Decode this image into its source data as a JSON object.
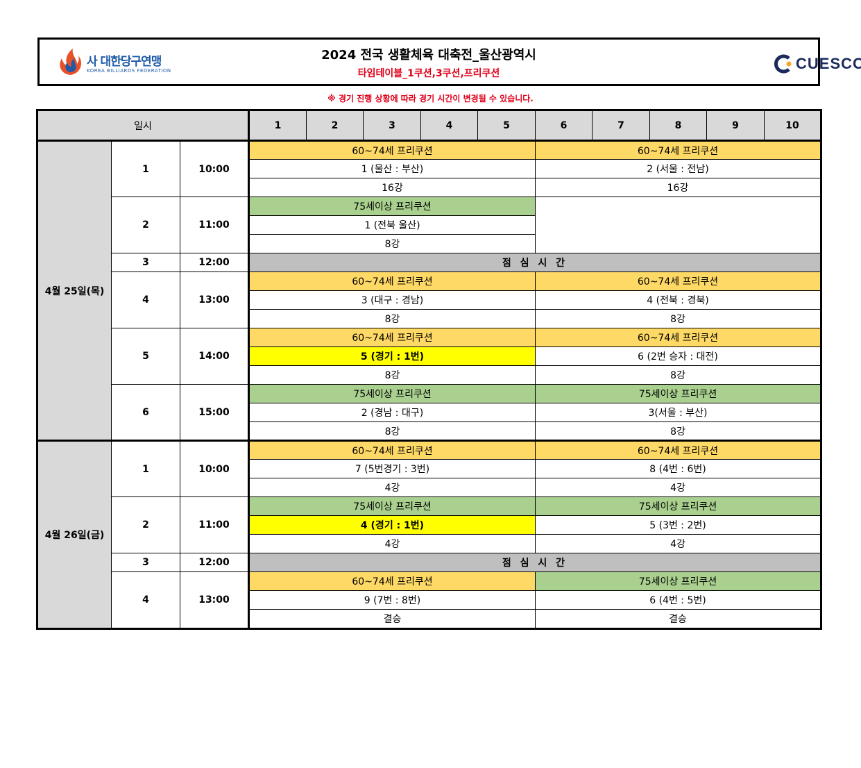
{
  "header": {
    "logo_left_ko": "사 대한당구연맹",
    "logo_left_en": "KOREA BILLIARDS FEDERATION",
    "title": "2024 전국 생활체육 대축전_울산광역시",
    "subtitle": "타임테이블_1쿠션,3쿠션,프리쿠션",
    "logo_right": "CUESCO"
  },
  "notice": "※ 경기 진행 상황에 따라 경기 시간이 변경될 수 있습니다.",
  "table": {
    "col_header": "일시",
    "tables": [
      "1",
      "2",
      "3",
      "4",
      "5",
      "6",
      "7",
      "8",
      "9",
      "10"
    ],
    "lunch_label": "점 심 시 간",
    "days": [
      {
        "date": "4월 25일(목)",
        "slots": [
          {
            "no": "1",
            "time": "10:00",
            "left": {
              "cat": "60~74세 프리쿠션",
              "match": "1 (울산 : 부산)",
              "round": "16강"
            },
            "right": {
              "cat": "60~74세 프리쿠션",
              "match": "2 (서울 : 전남)",
              "round": "16강"
            }
          },
          {
            "no": "2",
            "time": "11:00",
            "left": {
              "cat": "75세이상 프리쿠션",
              "match": "1 (전북 울산)",
              "round": "8강"
            }
          },
          {
            "no": "3",
            "time": "12:00"
          },
          {
            "no": "4",
            "time": "13:00",
            "left": {
              "cat": "60~74세 프리쿠션",
              "match": "3 (대구 : 경남)",
              "round": "8강"
            },
            "right": {
              "cat": "60~74세 프리쿠션",
              "match": "4 (전북 : 경북)",
              "round": "8강"
            }
          },
          {
            "no": "5",
            "time": "14:00",
            "left": {
              "cat": "60~74세 프리쿠션",
              "match": "5 (경기 : 1번)",
              "round": "8강"
            },
            "right": {
              "cat": "60~74세 프리쿠션",
              "match": "6 (2번 승자 : 대전)",
              "round": "8강"
            }
          },
          {
            "no": "6",
            "time": "15:00",
            "left": {
              "cat": "75세이상 프리쿠션",
              "match": "2 (경남 :  대구)",
              "round": "8강"
            },
            "right": {
              "cat": "75세이상 프리쿠션",
              "match": "3(서울 : 부산)",
              "round": "8강"
            }
          }
        ]
      },
      {
        "date": "4월 26일(금)",
        "slots": [
          {
            "no": "1",
            "time": "10:00",
            "left": {
              "cat": "60~74세 프리쿠션",
              "match": "7 (5번경기 : 3번)",
              "round": "4강"
            },
            "right": {
              "cat": "60~74세 프리쿠션",
              "match": "8 (4번 : 6번)",
              "round": "4강"
            }
          },
          {
            "no": "2",
            "time": "11:00",
            "left": {
              "cat": "75세이상 프리쿠션",
              "match": "4 (경기 : 1번)",
              "round": "4강"
            },
            "right": {
              "cat": "75세이상 프리쿠션",
              "match": "5 (3번 : 2번)",
              "round": "4강"
            }
          },
          {
            "no": "3",
            "time": "12:00"
          },
          {
            "no": "4",
            "time": "13:00",
            "left": {
              "cat": "60~74세 프리쿠션",
              "match": "9 (7번 : 8번)",
              "round": "결승"
            },
            "right": {
              "cat": "75세이상 프리쿠션",
              "match": "6 (4번 :  5번)",
              "round": "결승"
            }
          }
        ]
      }
    ]
  },
  "colors": {
    "orange": "#ffd966",
    "green": "#a9d08e",
    "highlight": "#ffff00",
    "lunch": "#bfbfbf",
    "red": "#e0001b"
  }
}
